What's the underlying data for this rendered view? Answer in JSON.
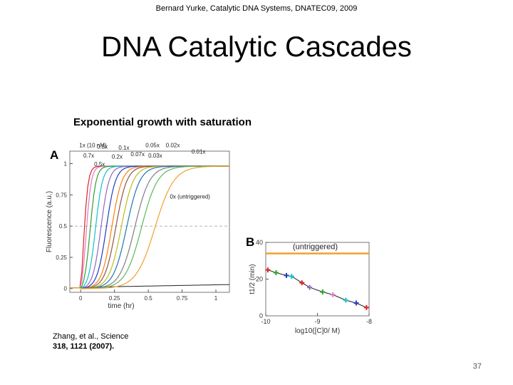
{
  "slide": {
    "header": "Bernard Yurke, Catalytic DNA Systems, DNATEC09, 2009",
    "title": "DNA Catalytic Cascades",
    "figure_title": "Exponential growth with saturation",
    "citation_line1": "Zhang,  et al., Science",
    "citation_line2": "318, 1121 (2007).",
    "page_number": "37"
  },
  "chart_data": [
    {
      "type": "line",
      "panel": "A",
      "xlabel": "time (hr)",
      "ylabel": "Fluorescence (a.u.)",
      "xlim": [
        -0.08,
        1.1
      ],
      "ylim": [
        -0.03,
        1.1
      ],
      "x_ticks": [
        "0",
        "0.25",
        "0.5",
        "0.75",
        "1"
      ],
      "y_ticks": [
        "0",
        "0.25",
        "0.5",
        "0.75",
        "1"
      ],
      "reference_line_y": 0.5,
      "labels": [
        {
          "text": "1x (10 nM)",
          "x": -0.01,
          "y": 1.13
        },
        {
          "text": "0.7x",
          "x": 0.02,
          "y": 1.05
        },
        {
          "text": "0.5x",
          "x": 0.1,
          "y": 0.98
        },
        {
          "text": "0.3x",
          "x": 0.12,
          "y": 1.12
        },
        {
          "text": "0.1x",
          "x": 0.28,
          "y": 1.11
        },
        {
          "text": "0.2x",
          "x": 0.23,
          "y": 1.04
        },
        {
          "text": "0.07x",
          "x": 0.37,
          "y": 1.06
        },
        {
          "text": "0.05x",
          "x": 0.48,
          "y": 1.13
        },
        {
          "text": "0.03x",
          "x": 0.5,
          "y": 1.05
        },
        {
          "text": "0.02x",
          "x": 0.63,
          "y": 1.13
        },
        {
          "text": "0.01x",
          "x": 0.82,
          "y": 1.08
        },
        {
          "text": "0x (untriggered)",
          "x": 0.66,
          "y": 0.72
        }
      ],
      "series": [
        {
          "label": "1x (10 nM)",
          "t_half": 0.02,
          "color": "#d62728"
        },
        {
          "label": "0.7x",
          "t_half": 0.04,
          "color": "#e377c2"
        },
        {
          "label": "0.5x",
          "t_half": 0.07,
          "color": "#2ca02c"
        },
        {
          "label": "0.3x",
          "t_half": 0.11,
          "color": "#17becf"
        },
        {
          "label": "0.2x",
          "t_half": 0.15,
          "color": "#9467bd"
        },
        {
          "label": "0.1x",
          "t_half": 0.19,
          "color": "#1f3fbf"
        },
        {
          "label": "0.07x",
          "t_half": 0.23,
          "color": "#ff7f0e"
        },
        {
          "label": "0.05x",
          "t_half": 0.26,
          "color": "#8c564b"
        },
        {
          "label": "0.03x",
          "t_half": 0.3,
          "color": "#bcbd22"
        },
        {
          "label": "0.02x",
          "t_half": 0.34,
          "color": "#1f77b4"
        },
        {
          "label": "0.01x",
          "t_half": 0.4,
          "color": "#7f7f7f"
        },
        {
          "label": "",
          "t_half": 0.45,
          "color": "#5cb85c"
        },
        {
          "label": "0x (untriggered)",
          "t_half": 0.55,
          "color": "#f0a030"
        }
      ],
      "baseline_color": "#222222"
    },
    {
      "type": "scatter",
      "panel": "B",
      "xlabel": "log10([C]0/ M)",
      "ylabel": "t1/2 (min)",
      "xlim": [
        -10,
        -8
      ],
      "ylim": [
        0,
        40
      ],
      "x_ticks": [
        "-10",
        "-9",
        "-8"
      ],
      "y_ticks": [
        "0",
        "20",
        "40"
      ],
      "untriggered_label": "(untriggered)",
      "untriggered_y": 34,
      "points": [
        {
          "x": -9.96,
          "y": 25.0,
          "color": "#d62728"
        },
        {
          "x": -9.8,
          "y": 23.5,
          "color": "#2ca02c"
        },
        {
          "x": -9.6,
          "y": 22.0,
          "color": "#1f3fbf"
        },
        {
          "x": -9.5,
          "y": 21.5,
          "color": "#17becf"
        },
        {
          "x": -9.3,
          "y": 18.0,
          "color": "#d62728"
        },
        {
          "x": -9.15,
          "y": 15.5,
          "color": "#9467bd"
        },
        {
          "x": -8.9,
          "y": 13.0,
          "color": "#2ca02c"
        },
        {
          "x": -8.7,
          "y": 11.5,
          "color": "#e377c2"
        },
        {
          "x": -8.45,
          "y": 8.5,
          "color": "#17becf"
        },
        {
          "x": -8.25,
          "y": 7.0,
          "color": "#1f3fbf"
        },
        {
          "x": -8.05,
          "y": 4.5,
          "color": "#d62728"
        }
      ]
    }
  ]
}
